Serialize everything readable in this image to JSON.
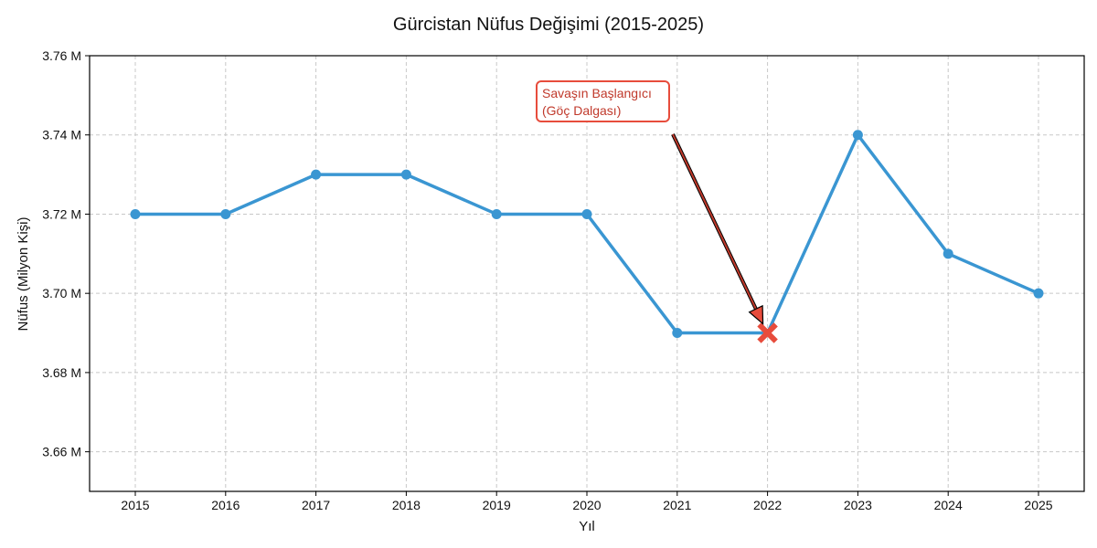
{
  "chart_data": {
    "type": "line",
    "title": "Gürcistan Nüfus Değişimi (2015-2025)",
    "xlabel": "Yıl",
    "ylabel": "Nüfus (Milyon Kişi)",
    "x": [
      2015,
      2016,
      2017,
      2018,
      2019,
      2020,
      2021,
      2022,
      2023,
      2024,
      2025
    ],
    "series": [
      {
        "name": "Nüfus",
        "values": [
          3.72,
          3.72,
          3.73,
          3.73,
          3.72,
          3.72,
          3.69,
          3.69,
          3.74,
          3.71,
          3.7
        ],
        "color": "#3a96d2"
      }
    ],
    "ylim": [
      3.65,
      3.76
    ],
    "yticks": [
      3.66,
      3.68,
      3.7,
      3.72,
      3.74,
      3.76
    ],
    "ytick_labels": [
      "3.66 M",
      "3.68 M",
      "3.70 M",
      "3.72 M",
      "3.74 M",
      "3.76 M"
    ],
    "grid": true,
    "highlight": {
      "x": 2022,
      "y": 3.69,
      "marker": "X",
      "color": "#e74c3c"
    },
    "annotation": {
      "text": [
        "Savaşın Başlangıcı",
        "(Göç Dalgası)"
      ],
      "color": "#c0392b",
      "border_color": "#e74c3c",
      "arrow_color": "#c0392b"
    }
  }
}
